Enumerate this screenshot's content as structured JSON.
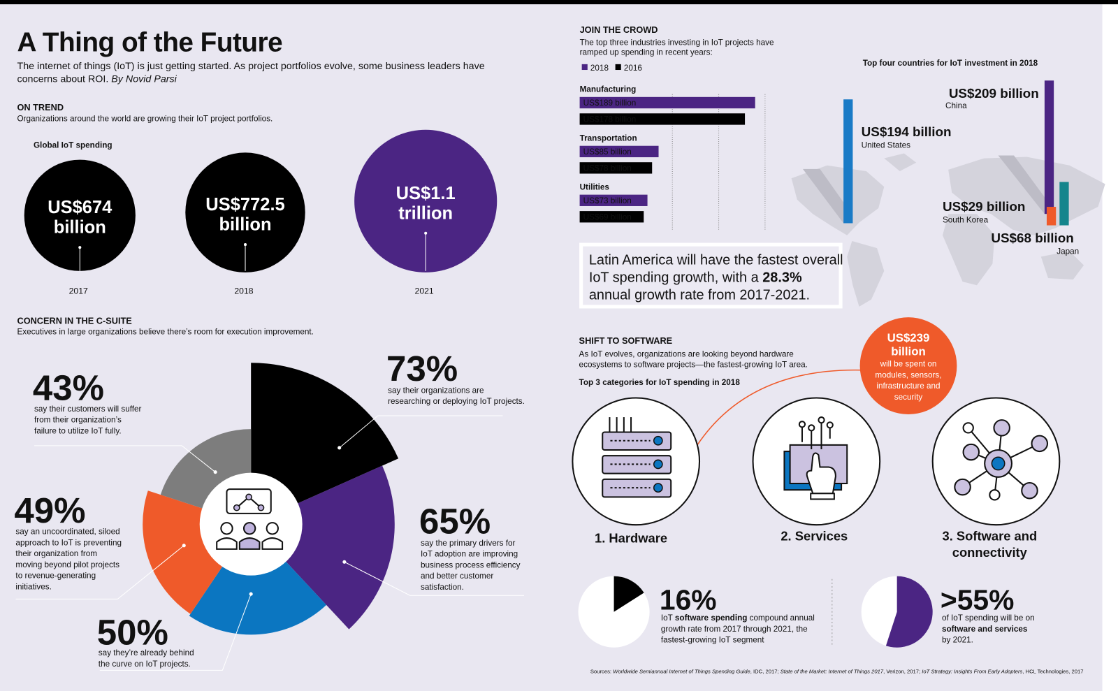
{
  "header": {
    "title": "A Thing of the Future",
    "subtitle_lines": [
      "The internet of things (IoT) is just getting started. As project portfolios evolve, some business leaders have",
      [
        {
          "t": "concerns about ROI. "
        },
        {
          "t": "By Novid Parsi",
          "i": true
        }
      ]
    ]
  },
  "on_trend": {
    "heading": "ON TREND",
    "description": "Organizations around the world are growing their IoT project portfolios.",
    "chart_title": "Global IoT spending",
    "items": [
      {
        "lines": [
          "US$674",
          "billion"
        ],
        "year": "2017"
      },
      {
        "lines": [
          "US$772.5",
          "billion"
        ],
        "year": "2018"
      },
      {
        "lines": [
          "US$1.1",
          "trillion"
        ],
        "year": "2021"
      }
    ]
  },
  "concern": {
    "heading": "CONCERN IN THE C-SUITE",
    "description": "Executives in large organizations believe there’s room for execution improvement.",
    "segments": [
      {
        "value": 73,
        "label": "73%",
        "color": "#000000",
        "lines": [
          "say their organizations are",
          "researching or deploying IoT projects."
        ]
      },
      {
        "value": 65,
        "label": "65%",
        "color": "#4b2583",
        "lines": [
          "say the primary drivers for",
          "IoT adoption are improving",
          "business process efficiency",
          "and better customer",
          "satisfaction."
        ]
      },
      {
        "value": 50,
        "label": "50%",
        "color": "#0b76c1",
        "lines": [
          "say they’re already behind",
          "the curve on IoT projects."
        ]
      },
      {
        "value": 49,
        "label": "49%",
        "color": "#ef5a2a",
        "lines": [
          "say an uncoordinated, siloed",
          "approach to IoT is preventing",
          "their organization from",
          "moving beyond pilot projects",
          "to revenue-generating",
          "initiatives."
        ]
      },
      {
        "value": 43,
        "label": "43%",
        "color": "#7d7d7d",
        "lines": [
          "say their customers will suffer",
          "from their organization’s",
          "failure to utilize IoT fully."
        ]
      }
    ]
  },
  "join_crowd": {
    "heading": "JOIN THE CROWD",
    "description_lines": [
      "The top three industries investing in IoT projects have",
      "ramped up spending in recent years:"
    ],
    "chart": {
      "type": "bar",
      "categories": [
        "Manufacturing",
        "Transportation",
        "Utilities"
      ],
      "series": [
        {
          "name": "2018",
          "color": "#4b2583",
          "values": [
            189,
            85,
            73
          ],
          "value_labels": [
            "US$189 billion",
            "US$85 billion",
            "US$73 billion"
          ]
        },
        {
          "name": "2016",
          "color": "#000000",
          "values": [
            178,
            78,
            69
          ],
          "value_labels": [
            "US$178 billion",
            "US$78 billion",
            "US$69 billion"
          ]
        }
      ]
    }
  },
  "countries": {
    "title": "Top four countries for IoT investment in 2018",
    "items": [
      {
        "name": "China",
        "value": 209,
        "label": "US$209 billion",
        "color": "#4b2583"
      },
      {
        "name": "United States",
        "value": 194,
        "label": "US$194 billion",
        "color": "#1a7bc6"
      },
      {
        "name": "South Korea",
        "value": 29,
        "label": "US$29 billion",
        "color": "#ef5a2a"
      },
      {
        "name": "Japan",
        "value": 68,
        "label": "US$68 billion",
        "color": "#15858c"
      }
    ]
  },
  "callout": {
    "lines": [
      "Latin America will have the fastest overall",
      [
        {
          "t": "IoT spending growth, with a "
        },
        {
          "t": "28.3%",
          "b": true
        }
      ],
      "annual growth rate from 2017-2021."
    ]
  },
  "software": {
    "heading": "SHIFT TO SOFTWARE",
    "description_lines": [
      "As IoT evolves, organizations are looking beyond hardware",
      "ecosystems to software projects—the fastest-growing IoT area."
    ],
    "chart_title": "Top 3 categories for IoT spending in 2018",
    "bubble": {
      "title_lines": [
        "US$239",
        "billion"
      ],
      "lines": [
        "will be spent on",
        "modules, sensors,",
        "infrastructure and",
        "security"
      ]
    },
    "categories": [
      {
        "lines": [
          "1. Hardware"
        ]
      },
      {
        "lines": [
          "2. Services"
        ]
      },
      {
        "lines": [
          "3. Software and",
          "connectivity"
        ]
      }
    ],
    "stats": [
      {
        "value": 16,
        "label": "16%",
        "lines": [
          [
            {
              "t": "IoT "
            },
            {
              "t": "software spending",
              "b": true
            },
            {
              "t": " compound annual"
            }
          ],
          "growth rate from 2017 through 2021, the",
          "fastest-growing IoT segment"
        ]
      },
      {
        "value": 55,
        "label": ">55%",
        "lines": [
          "of IoT spending will be on",
          [
            {
              "t": "software and services",
              "b": true
            }
          ],
          "by 2021."
        ]
      }
    ]
  },
  "sources_lines": [
    [
      {
        "t": "Sources: "
      },
      {
        "t": "Worldwide Semiannual Internet of Things Spending Guide",
        "i": true
      },
      {
        "t": ", IDC, 2017; "
      },
      {
        "t": "State of the Market: Internet of Things 2017",
        "i": true
      },
      {
        "t": ", Verizon, 2017; "
      },
      {
        "t": "IoT Strategy: Insights From Early Adopters",
        "i": true
      },
      {
        "t": ", HCL Technologies, 2017"
      }
    ]
  ]
}
